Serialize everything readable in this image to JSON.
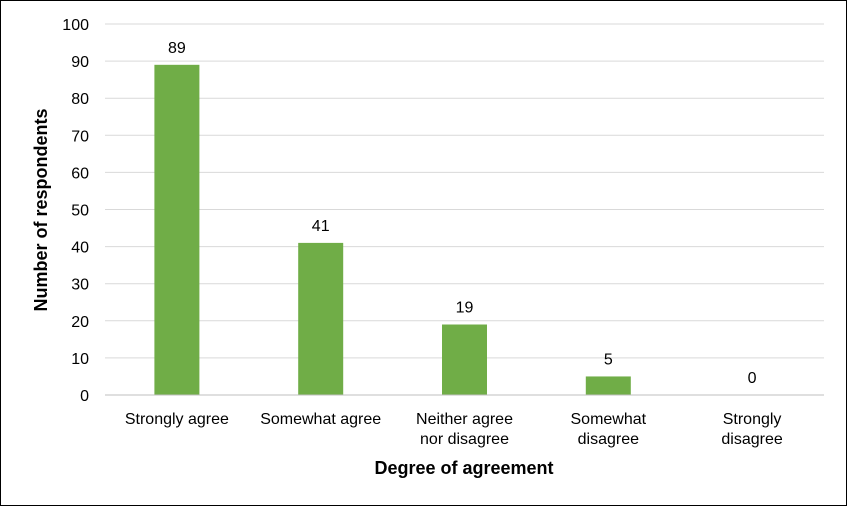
{
  "chart_data": {
    "type": "bar",
    "title": "",
    "xlabel": "Degree of agreement",
    "ylabel": "Number of respondents",
    "categories": [
      [
        "Strongly agree"
      ],
      [
        "Somewhat agree"
      ],
      [
        "Neither agree",
        "nor disagree"
      ],
      [
        "Somewhat",
        "disagree"
      ],
      [
        "Strongly",
        "disagree"
      ]
    ],
    "values": [
      89,
      41,
      19,
      5,
      0
    ],
    "ylim": [
      0,
      100
    ],
    "yticks": [
      0,
      10,
      20,
      30,
      40,
      50,
      60,
      70,
      80,
      90,
      100
    ],
    "grid": true,
    "legend": "none",
    "bar_color": "#70ad47",
    "grid_color": "#d9d9d9",
    "axis_color": "#bfbfbf"
  }
}
